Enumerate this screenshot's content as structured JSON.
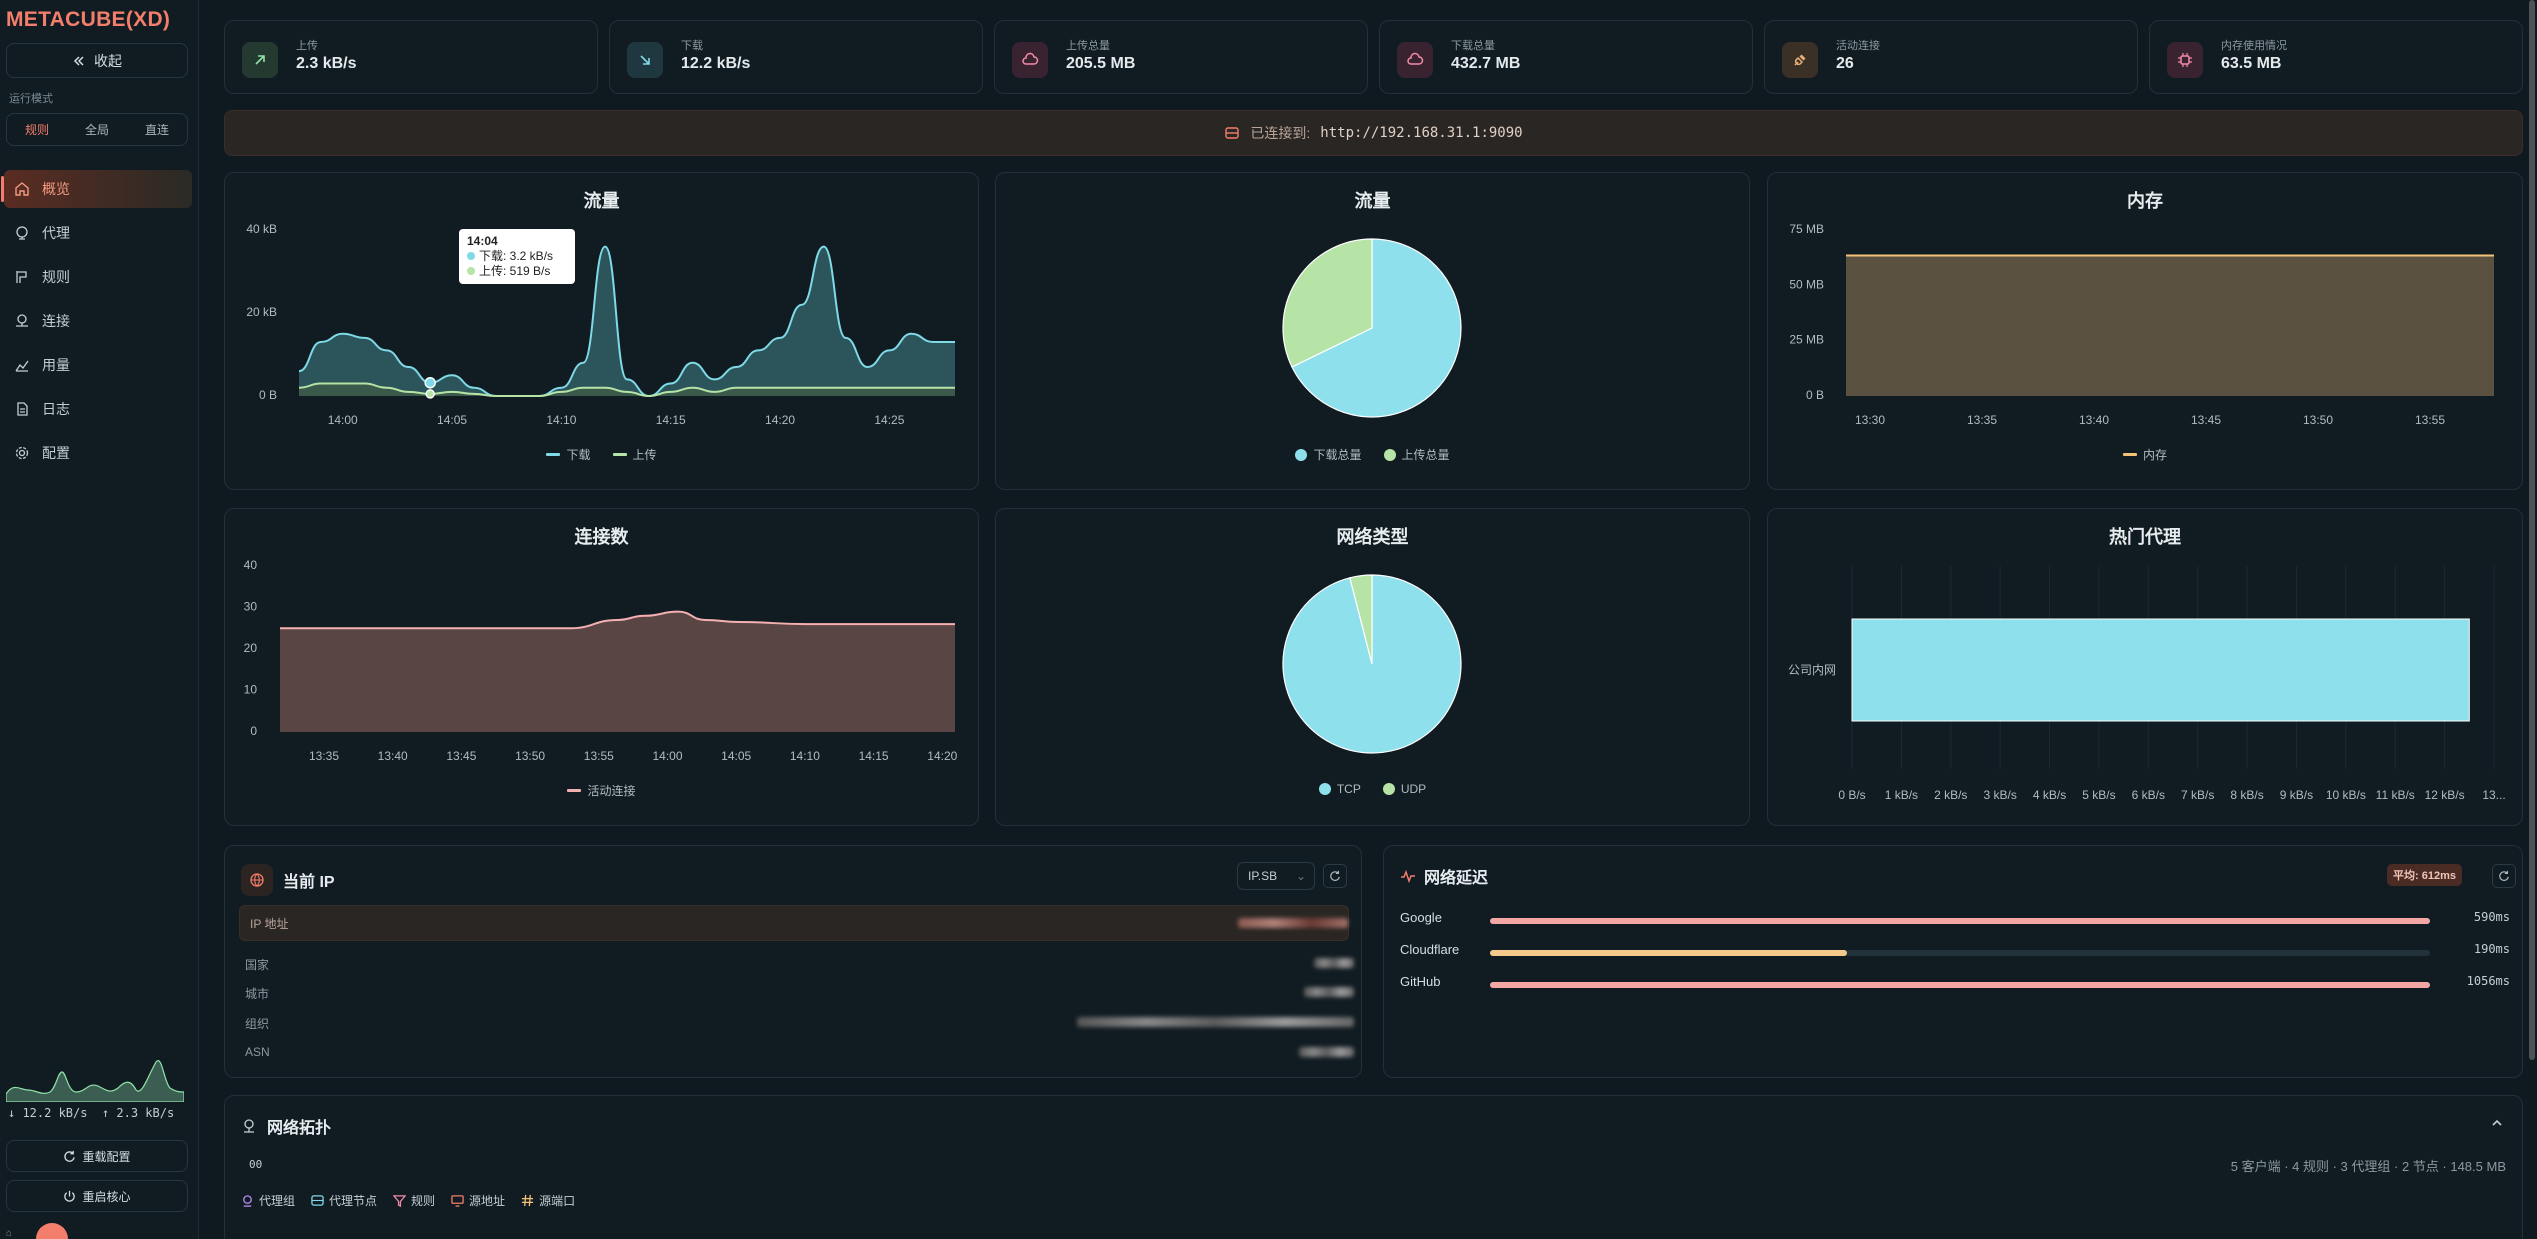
{
  "sidebar": {
    "logo": "METACUBE",
    "logo_suffix": "(XD)",
    "collapse_label": "收起",
    "mode_label": "运行模式",
    "modes": [
      "规则",
      "全局",
      "直连"
    ],
    "active_mode": 0,
    "nav": [
      {
        "label": "概览",
        "icon": "home-icon"
      },
      {
        "label": "代理",
        "icon": "globe-icon"
      },
      {
        "label": "规则",
        "icon": "rule-icon"
      },
      {
        "label": "连接",
        "icon": "connection-icon"
      },
      {
        "label": "用量",
        "icon": "usage-chart-icon"
      },
      {
        "label": "日志",
        "icon": "log-file-icon"
      },
      {
        "label": "配置",
        "icon": "gear-icon"
      }
    ],
    "active_nav": 0,
    "down_speed": "↓ 12.2 kB/s",
    "up_speed": "↑ 2.3 kB/s",
    "reload_label": "重载配置",
    "restart_label": "重启核心",
    "corner_mark": "⌂"
  },
  "stats": [
    {
      "label": "上传",
      "value": "2.3 kB/s",
      "icon": "arrow-up-right-icon",
      "color": "#8fe3a7"
    },
    {
      "label": "下载",
      "value": "12.2 kB/s",
      "icon": "arrow-down-right-icon",
      "color": "#7fd9e6"
    },
    {
      "label": "上传总量",
      "value": "205.5 MB",
      "icon": "cloud-upload-icon",
      "color": "#f28ba8"
    },
    {
      "label": "下载总量",
      "value": "432.7 MB",
      "icon": "cloud-download-icon",
      "color": "#f28ba8"
    },
    {
      "label": "活动连接",
      "value": "26",
      "icon": "plug-icon",
      "color": "#e9b07a"
    },
    {
      "label": "内存使用情况",
      "value": "63.5 MB",
      "icon": "chip-icon",
      "color": "#f28ba8"
    }
  ],
  "banner": {
    "prefix": "已连接到:",
    "url": "http://192.168.31.1:9090"
  },
  "charts": {
    "traffic": {
      "title": "流量",
      "yticks": [
        "40 kB",
        "20 kB",
        "0 B"
      ],
      "xticks": [
        "14:00",
        "14:05",
        "14:10",
        "14:15",
        "14:20",
        "14:25"
      ],
      "legend": [
        "下载",
        "上传"
      ],
      "tooltip": {
        "time": "14:04",
        "down": "下载: 3.2 kB/s",
        "up": "上传: 519 B/s"
      }
    },
    "traffic_pie": {
      "title": "流量",
      "legend": [
        "下载总量",
        "上传总量"
      ]
    },
    "memory": {
      "title": "内存",
      "yticks": [
        "75 MB",
        "50 MB",
        "25 MB",
        "0 B"
      ],
      "xticks": [
        "13:30",
        "13:35",
        "13:40",
        "13:45",
        "13:50",
        "13:55"
      ],
      "legend": [
        "内存"
      ]
    },
    "connections": {
      "title": "连接数",
      "yticks": [
        "40",
        "30",
        "20",
        "10",
        "0"
      ],
      "xticks": [
        "13:35",
        "13:40",
        "13:45",
        "13:50",
        "13:55",
        "14:00",
        "14:05",
        "14:10",
        "14:15",
        "14:20"
      ],
      "legend": [
        "活动连接"
      ]
    },
    "network_pie": {
      "title": "网络类型",
      "legend": [
        "TCP",
        "UDP"
      ]
    },
    "top_proxy": {
      "title": "热门代理",
      "category": "公司内网",
      "xticks": [
        "0 B/s",
        "1 kB/s",
        "2 kB/s",
        "3 kB/s",
        "4 kB/s",
        "5 kB/s",
        "6 kB/s",
        "7 kB/s",
        "8 kB/s",
        "9 kB/s",
        "10 kB/s",
        "11 kB/s",
        "12 kB/s",
        "13..."
      ]
    }
  },
  "chart_data": [
    {
      "type": "area",
      "title": "流量",
      "x": [
        "13:58",
        "13:59",
        "14:00",
        "14:01",
        "14:02",
        "14:03",
        "14:04",
        "14:05",
        "14:06",
        "14:07",
        "14:08",
        "14:09",
        "14:10",
        "14:11",
        "14:12",
        "14:13",
        "14:14",
        "14:15",
        "14:16",
        "14:17",
        "14:18",
        "14:19",
        "14:20",
        "14:21",
        "14:22",
        "14:23",
        "14:24",
        "14:25",
        "14:26",
        "14:27",
        "14:28"
      ],
      "series": [
        {
          "name": "下载",
          "values": [
            6,
            13,
            15,
            14,
            11,
            7,
            3.2,
            5,
            2,
            0,
            0,
            0,
            2,
            8,
            36,
            4,
            0,
            3,
            8,
            4,
            7,
            11,
            14,
            22,
            36,
            14,
            7,
            11,
            15,
            13,
            13
          ]
        },
        {
          "name": "上传",
          "values": [
            2,
            3,
            3,
            3,
            2,
            1,
            0.5,
            1,
            0.5,
            0,
            0,
            0,
            1,
            2,
            2,
            1,
            0,
            1,
            2,
            1,
            2,
            2,
            2,
            2,
            2,
            2,
            2,
            2,
            2,
            2,
            2
          ]
        }
      ],
      "ylim": [
        0,
        40
      ]
    },
    {
      "type": "pie",
      "title": "流量",
      "labels": [
        "下载总量",
        "上传总量"
      ],
      "values": [
        432.7,
        205.5
      ]
    },
    {
      "type": "area",
      "title": "内存",
      "x": [
        "13:30",
        "13:35",
        "13:40",
        "13:45",
        "13:50",
        "13:55"
      ],
      "series": [
        {
          "name": "内存",
          "values": [
            63.5,
            63.5,
            63.5,
            63.5,
            63.5,
            63.5
          ]
        }
      ],
      "ylim": [
        0,
        75
      ]
    },
    {
      "type": "area",
      "title": "连接数",
      "x": [
        "13:33",
        "13:35",
        "13:40",
        "13:45",
        "13:50",
        "13:53",
        "13:55",
        "13:57",
        "14:00",
        "14:02",
        "14:05",
        "14:10",
        "14:15",
        "14:20"
      ],
      "series": [
        {
          "name": "活动连接",
          "values": [
            25,
            25,
            25,
            25,
            25,
            25,
            27,
            28,
            29,
            27,
            26.5,
            26,
            26,
            26
          ]
        }
      ],
      "ylim": [
        0,
        40
      ]
    },
    {
      "type": "pie",
      "title": "网络类型",
      "labels": [
        "TCP",
        "UDP"
      ],
      "values": [
        96,
        4
      ]
    },
    {
      "type": "bar",
      "title": "热门代理",
      "categories": [
        "公司内网"
      ],
      "values": [
        12.5
      ],
      "xlim": [
        0,
        13
      ]
    }
  ],
  "ip": {
    "title": "当前 IP",
    "provider": "IP.SB",
    "ip_label": "IP 地址",
    "rows": [
      "国家",
      "城市",
      "组织",
      "ASN"
    ]
  },
  "latency": {
    "title": "网络延迟",
    "average": "平均: 612ms",
    "items": [
      {
        "name": "Google",
        "value": "590ms",
        "fill": 1.0,
        "color": "#f4a6a6"
      },
      {
        "name": "Cloudflare",
        "value": "190ms",
        "fill": 0.38,
        "color": "#f5c98c"
      },
      {
        "name": "GitHub",
        "value": "1056ms",
        "fill": 1.0,
        "color": "#f4a6a6"
      }
    ]
  },
  "topology": {
    "title": "网络拓扑",
    "toggle": "00",
    "stats": "5 客户端 · 4 规则 · 3 代理组 · 2 节点 · 148.5 MB",
    "legend": [
      "代理组",
      "代理节点",
      "规则",
      "源地址",
      "源端口"
    ]
  }
}
